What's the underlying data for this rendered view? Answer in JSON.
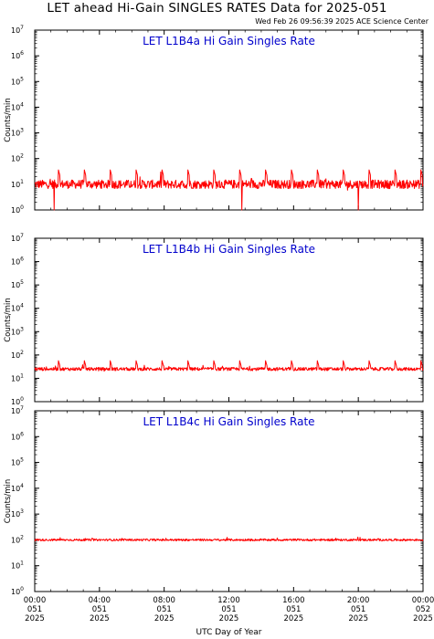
{
  "page": {
    "title": "LET ahead Hi-Gain SINGLES RATES Data for 2025-051",
    "timestamp": "Wed Feb 26 09:56:39 2025 ACE Science Center",
    "xlabel": "UTC Day of Year"
  },
  "chart_data": [
    {
      "type": "line",
      "title": "LET L1B4a Hi Gain Singles Rate",
      "ylabel": "Counts/min",
      "yscale": "log",
      "ylim": [
        1,
        10000000
      ],
      "xlim_hours": [
        0,
        24
      ],
      "baseline": 10,
      "noise_decades": 0.17,
      "spike_period_hours": 1.6,
      "spike_amplitude": 4,
      "dips": [
        1.2,
        12.8,
        20.0
      ]
    },
    {
      "type": "line",
      "title": "LET L1B4b Hi Gain Singles Rate",
      "ylabel": "Counts/min",
      "yscale": "log",
      "ylim": [
        1,
        10000000
      ],
      "xlim_hours": [
        0,
        24
      ],
      "baseline": 25,
      "noise_decades": 0.07,
      "spike_period_hours": 1.6,
      "spike_amplitude": 2.5,
      "dips": []
    },
    {
      "type": "line",
      "title": "LET L1B4c Hi Gain Singles Rate",
      "ylabel": "Counts/min",
      "yscale": "log",
      "ylim": [
        1,
        10000000
      ],
      "xlim_hours": [
        0,
        24
      ],
      "baseline": 100,
      "noise_decades": 0.04,
      "spike_period_hours": 0,
      "spike_amplitude": 1,
      "dips": []
    }
  ],
  "x_ticks": [
    {
      "hours": 0,
      "label": [
        "00:00",
        "051",
        "2025"
      ]
    },
    {
      "hours": 4,
      "label": [
        "04:00",
        "051",
        "2025"
      ]
    },
    {
      "hours": 8,
      "label": [
        "08:00",
        "051",
        "2025"
      ]
    },
    {
      "hours": 12,
      "label": [
        "12:00",
        "051",
        "2025"
      ]
    },
    {
      "hours": 16,
      "label": [
        "16:00",
        "051",
        "2025"
      ]
    },
    {
      "hours": 20,
      "label": [
        "20:00",
        "051",
        "2025"
      ]
    },
    {
      "hours": 24,
      "label": [
        "00:00",
        "052",
        "2025"
      ]
    }
  ],
  "colors": {
    "series": "#ff0000",
    "panel_title": "#0000cc",
    "axis": "#000000"
  }
}
